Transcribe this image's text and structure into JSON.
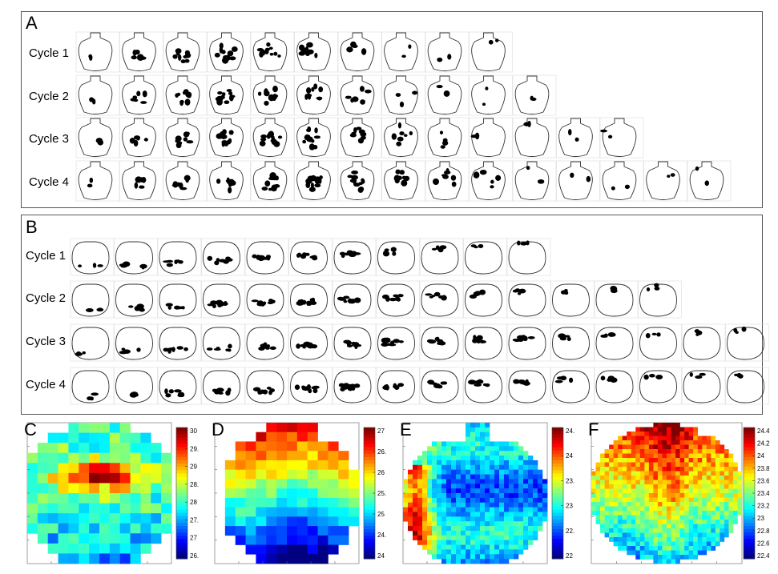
{
  "figure": {
    "panels": {
      "A": {
        "letter": "A",
        "cycles": [
          "Cycle 1",
          "Cycle 2",
          "Cycle 3",
          "Cycle 4"
        ],
        "frame_counts": [
          10,
          11,
          13,
          15
        ]
      },
      "B": {
        "letter": "B",
        "cycles": [
          "Cycle 1",
          "Cycle 2",
          "Cycle 3",
          "Cycle 4"
        ],
        "frame_counts": [
          11,
          14,
          16,
          16
        ]
      }
    },
    "heatmaps": [
      {
        "letter": "C",
        "colorbar_ticks": [
          "30",
          "29.5",
          "29",
          "28.5",
          "28",
          "27.5",
          "27",
          "26.5"
        ]
      },
      {
        "letter": "D",
        "colorbar_ticks": [
          "27",
          "26.5",
          "26",
          "25.5",
          "25",
          "24.5",
          "24"
        ]
      },
      {
        "letter": "E",
        "colorbar_ticks": [
          "24.5",
          "24",
          "23.5",
          "23",
          "22.5",
          "22"
        ]
      },
      {
        "letter": "F",
        "colorbar_ticks": [
          "24.4",
          "24.2",
          "24",
          "23.8",
          "23.6",
          "23.4",
          "23.2",
          "23",
          "22.8",
          "22.6",
          "22.4"
        ]
      }
    ]
  }
}
